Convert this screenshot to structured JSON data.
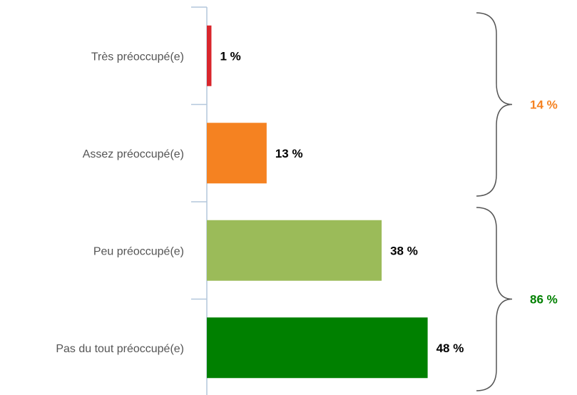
{
  "chart_data": {
    "type": "bar",
    "orientation": "horizontal",
    "categories": [
      "Très préoccupé(e)",
      "Assez préoccupé(e)",
      "Peu préoccupé(e)",
      "Pas du tout préoccupé(e)"
    ],
    "values": [
      1,
      13,
      38,
      48
    ],
    "value_labels": [
      "1 %",
      "13 %",
      "38 %",
      "48 %"
    ],
    "colors": [
      "#d9262c",
      "#f58221",
      "#9bbb59",
      "#008000"
    ],
    "xlim": [
      0,
      60
    ],
    "grid": false,
    "groups": [
      {
        "label": "14 %",
        "members": [
          0,
          1
        ],
        "color": "#f58221"
      },
      {
        "label": "86 %",
        "members": [
          2,
          3
        ],
        "color": "#008000"
      }
    ]
  }
}
